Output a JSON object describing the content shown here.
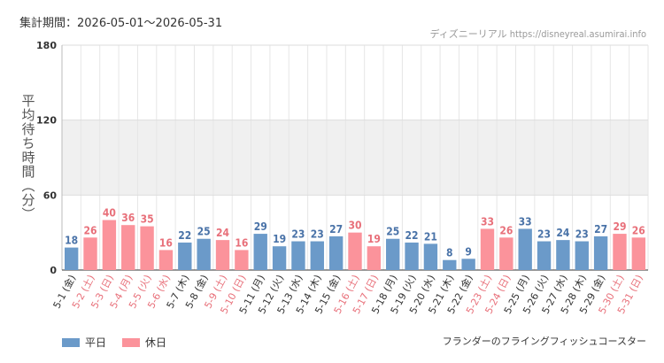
{
  "header": {
    "period_label": "集計期間：2026-05-01～2026-05-31",
    "source": "ディズニーリアル https://disneyreal.asumirai.info"
  },
  "footer": {
    "attraction": "フランダーのフライングフィッシュコースター"
  },
  "legend": {
    "weekday_label": "平日",
    "holiday_label": "休日"
  },
  "colors": {
    "weekday": "#6b9ac9",
    "holiday": "#fb939b",
    "weekday_text": "#4a73a8",
    "holiday_text": "#e8707a",
    "band": "#f0f0f0"
  },
  "chart_data": {
    "type": "bar",
    "ylabel": "平均待ち時間（分）",
    "ylim": [
      0,
      180
    ],
    "yticks": [
      0,
      60,
      120,
      180
    ],
    "highlight_band": [
      60,
      120
    ],
    "grid": true,
    "legend_position": "bottom-left",
    "categories": [
      "5-1 (金)",
      "5-2 (土)",
      "5-3 (日)",
      "5-4 (月)",
      "5-5 (火)",
      "5-6 (水)",
      "5-7 (木)",
      "5-8 (金)",
      "5-9 (土)",
      "5-10 (日)",
      "5-11 (月)",
      "5-12 (火)",
      "5-13 (水)",
      "5-14 (木)",
      "5-15 (金)",
      "5-16 (土)",
      "5-17 (日)",
      "5-18 (月)",
      "5-19 (火)",
      "5-20 (水)",
      "5-21 (木)",
      "5-22 (金)",
      "5-23 (土)",
      "5-24 (日)",
      "5-25 (月)",
      "5-26 (火)",
      "5-27 (水)",
      "5-28 (木)",
      "5-29 (金)",
      "5-30 (土)",
      "5-31 (日)"
    ],
    "values": [
      18,
      26,
      40,
      36,
      35,
      16,
      22,
      25,
      24,
      16,
      29,
      19,
      23,
      23,
      27,
      30,
      19,
      25,
      22,
      21,
      8,
      9,
      33,
      26,
      33,
      23,
      24,
      23,
      27,
      29,
      26
    ],
    "day_type": [
      "weekday",
      "holiday",
      "holiday",
      "holiday",
      "holiday",
      "holiday",
      "weekday",
      "weekday",
      "holiday",
      "holiday",
      "weekday",
      "weekday",
      "weekday",
      "weekday",
      "weekday",
      "holiday",
      "holiday",
      "weekday",
      "weekday",
      "weekday",
      "weekday",
      "weekday",
      "holiday",
      "holiday",
      "weekday",
      "weekday",
      "weekday",
      "weekday",
      "weekday",
      "holiday",
      "holiday"
    ]
  }
}
